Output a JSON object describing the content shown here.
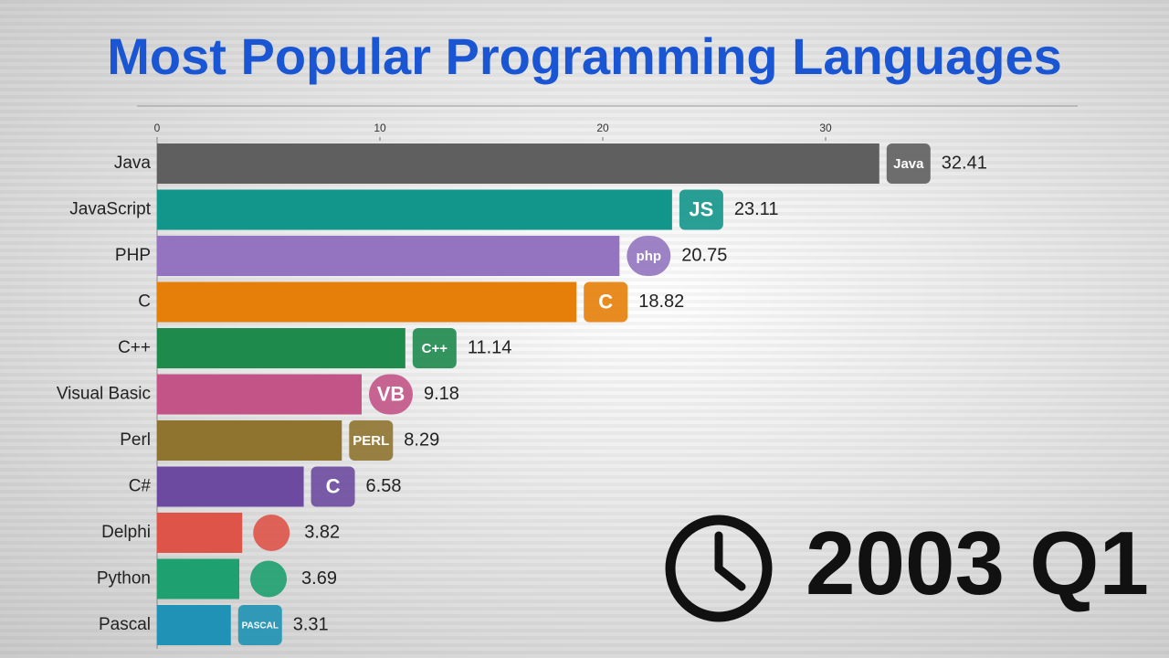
{
  "chart_data": {
    "type": "bar",
    "orientation": "horizontal",
    "title": "Most Popular Programming Languages",
    "period": "2003 Q1",
    "categories": [
      "Java",
      "JavaScript",
      "PHP",
      "C",
      "C++",
      "Visual Basic",
      "Perl",
      "C#",
      "Delphi",
      "Python",
      "Pascal"
    ],
    "values": [
      32.41,
      23.11,
      20.75,
      18.82,
      11.14,
      9.18,
      8.29,
      6.58,
      3.82,
      3.69,
      3.31
    ],
    "colors": [
      "#5f5f5f",
      "#12958a",
      "#9474c0",
      "#e57f0a",
      "#1e8a4c",
      "#c25487",
      "#8f7430",
      "#6b4aa0",
      "#de5448",
      "#1fa070",
      "#1f92b5"
    ],
    "logos": [
      "Java",
      "JS",
      "php",
      "C",
      "C++",
      "VB",
      "PERL",
      "C",
      null,
      null,
      "PASCAL"
    ],
    "xlim": [
      0,
      40
    ],
    "xticks": [
      0,
      10,
      20,
      30
    ]
  }
}
